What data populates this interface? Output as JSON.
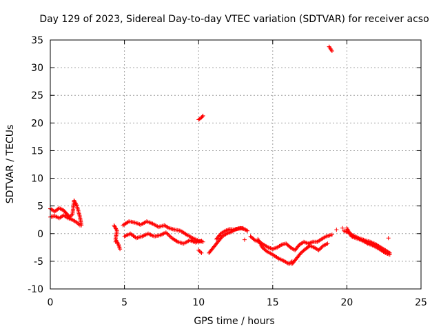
{
  "chart_data": {
    "type": "scatter",
    "title": "Day 129 of 2023, Sidereal Day-to-day VTEC variation (SDTVAR) for receiver acso",
    "xlabel": "GPS time / hours",
    "ylabel": "SDTVAR / TECUs",
    "xlim": [
      0,
      25
    ],
    "ylim": [
      -10,
      35
    ],
    "x_ticks": [
      0,
      5,
      10,
      15,
      20,
      25
    ],
    "y_ticks": [
      -10,
      -5,
      0,
      5,
      10,
      15,
      20,
      25,
      30,
      35
    ],
    "grid": true,
    "marker": "+",
    "color": "#ff0000",
    "series": [
      {
        "name": "SDTVAR",
        "segments": [
          [
            [
              0.0,
              4.5
            ],
            [
              0.3,
              4.0
            ],
            [
              0.6,
              4.6
            ],
            [
              0.9,
              4.2
            ],
            [
              1.1,
              3.6
            ],
            [
              1.3,
              3.0
            ],
            [
              1.5,
              3.5
            ],
            [
              1.6,
              6.0
            ],
            [
              1.8,
              5.0
            ],
            [
              2.0,
              3.0
            ],
            [
              2.1,
              1.5
            ]
          ],
          [
            [
              0.0,
              3.0
            ],
            [
              0.3,
              3.2
            ],
            [
              0.6,
              2.8
            ],
            [
              0.9,
              3.3
            ],
            [
              1.2,
              2.8
            ],
            [
              1.5,
              2.5
            ],
            [
              1.8,
              2.0
            ],
            [
              2.0,
              1.5
            ]
          ],
          [
            [
              4.3,
              1.5
            ],
            [
              4.5,
              0.5
            ],
            [
              4.4,
              -1.0
            ],
            [
              4.6,
              -2.0
            ],
            [
              4.7,
              -2.8
            ]
          ],
          [
            [
              4.9,
              1.5
            ],
            [
              5.3,
              2.2
            ],
            [
              5.7,
              2.0
            ],
            [
              6.1,
              1.6
            ],
            [
              6.5,
              2.2
            ],
            [
              6.9,
              1.8
            ],
            [
              7.3,
              1.2
            ],
            [
              7.7,
              1.5
            ],
            [
              8.0,
              1.0
            ],
            [
              8.4,
              0.7
            ],
            [
              8.8,
              0.5
            ],
            [
              9.2,
              -0.2
            ],
            [
              9.6,
              -0.8
            ],
            [
              10.0,
              -1.3
            ],
            [
              10.3,
              -1.5
            ]
          ],
          [
            [
              5.0,
              -0.5
            ],
            [
              5.4,
              0.0
            ],
            [
              5.8,
              -0.8
            ],
            [
              6.2,
              -0.5
            ],
            [
              6.6,
              0.0
            ],
            [
              7.0,
              -0.5
            ],
            [
              7.4,
              -0.3
            ],
            [
              7.8,
              0.2
            ],
            [
              8.2,
              -0.8
            ],
            [
              8.6,
              -1.5
            ],
            [
              9.0,
              -1.8
            ],
            [
              9.4,
              -1.2
            ],
            [
              9.8,
              -1.6
            ],
            [
              10.2,
              -1.3
            ]
          ],
          [
            [
              10.0,
              20.6
            ],
            [
              10.2,
              21.0
            ],
            [
              10.3,
              21.3
            ]
          ],
          [
            [
              10.0,
              -3.0
            ],
            [
              10.2,
              -3.5
            ]
          ],
          [
            [
              10.7,
              -3.5
            ],
            [
              11.0,
              -2.5
            ],
            [
              11.3,
              -1.5
            ],
            [
              11.6,
              -0.5
            ],
            [
              11.9,
              0.0
            ],
            [
              12.2,
              0.3
            ],
            [
              12.5,
              0.8
            ],
            [
              12.8,
              1.0
            ],
            [
              13.1,
              0.8
            ],
            [
              13.3,
              0.5
            ]
          ],
          [
            [
              11.2,
              -1.0
            ],
            [
              11.5,
              0.0
            ],
            [
              11.8,
              0.5
            ],
            [
              12.1,
              0.8
            ],
            [
              12.4,
              0.7
            ],
            [
              12.7,
              0.9
            ],
            [
              13.0,
              1.0
            ]
          ],
          [
            [
              13.5,
              -0.5
            ],
            [
              13.8,
              -1.2
            ],
            [
              14.1,
              -1.5
            ],
            [
              14.4,
              -2.0
            ],
            [
              14.7,
              -2.5
            ],
            [
              15.0,
              -2.8
            ],
            [
              15.3,
              -2.5
            ],
            [
              15.6,
              -2.0
            ],
            [
              15.9,
              -1.8
            ],
            [
              16.2,
              -2.5
            ],
            [
              16.5,
              -3.0
            ],
            [
              16.8,
              -2.0
            ],
            [
              17.1,
              -1.5
            ],
            [
              17.4,
              -1.8
            ],
            [
              17.7,
              -1.5
            ],
            [
              18.0,
              -1.5
            ],
            [
              18.3,
              -1.0
            ],
            [
              18.6,
              -0.5
            ],
            [
              19.0,
              -0.2
            ]
          ],
          [
            [
              14.0,
              -1.0
            ],
            [
              14.3,
              -2.5
            ],
            [
              14.6,
              -3.2
            ],
            [
              15.0,
              -3.8
            ],
            [
              15.4,
              -4.5
            ],
            [
              15.8,
              -5.0
            ],
            [
              16.1,
              -5.5
            ],
            [
              16.3,
              -5.0
            ]
          ],
          [
            [
              16.3,
              -5.5
            ],
            [
              16.6,
              -4.5
            ],
            [
              16.9,
              -3.5
            ],
            [
              17.2,
              -2.8
            ],
            [
              17.5,
              -2.2
            ],
            [
              17.8,
              -2.5
            ],
            [
              18.1,
              -3.0
            ],
            [
              18.4,
              -2.2
            ],
            [
              18.7,
              -1.8
            ]
          ],
          [
            [
              18.8,
              33.8
            ],
            [
              18.9,
              33.4
            ],
            [
              19.0,
              33.0
            ]
          ],
          [
            [
              19.8,
              0.5
            ],
            [
              20.1,
              0.2
            ],
            [
              20.4,
              -0.3
            ],
            [
              20.8,
              -0.8
            ],
            [
              21.2,
              -1.2
            ],
            [
              21.6,
              -1.5
            ],
            [
              22.0,
              -2.0
            ],
            [
              22.3,
              -2.5
            ],
            [
              22.6,
              -3.0
            ],
            [
              22.9,
              -3.5
            ]
          ],
          [
            [
              20.0,
              1.0
            ],
            [
              20.3,
              -0.5
            ],
            [
              20.6,
              -0.8
            ],
            [
              21.0,
              -1.2
            ],
            [
              21.4,
              -1.8
            ],
            [
              21.8,
              -2.2
            ],
            [
              22.2,
              -2.8
            ],
            [
              22.6,
              -3.5
            ],
            [
              22.9,
              -3.8
            ]
          ]
        ],
        "isolated": [
          [
            9.5,
            -1.2
          ],
          [
            13.1,
            -1.1
          ],
          [
            4.4,
            -1.5
          ],
          [
            19.7,
            1.0
          ],
          [
            19.3,
            0.7
          ],
          [
            22.8,
            -0.8
          ]
        ]
      }
    ]
  }
}
